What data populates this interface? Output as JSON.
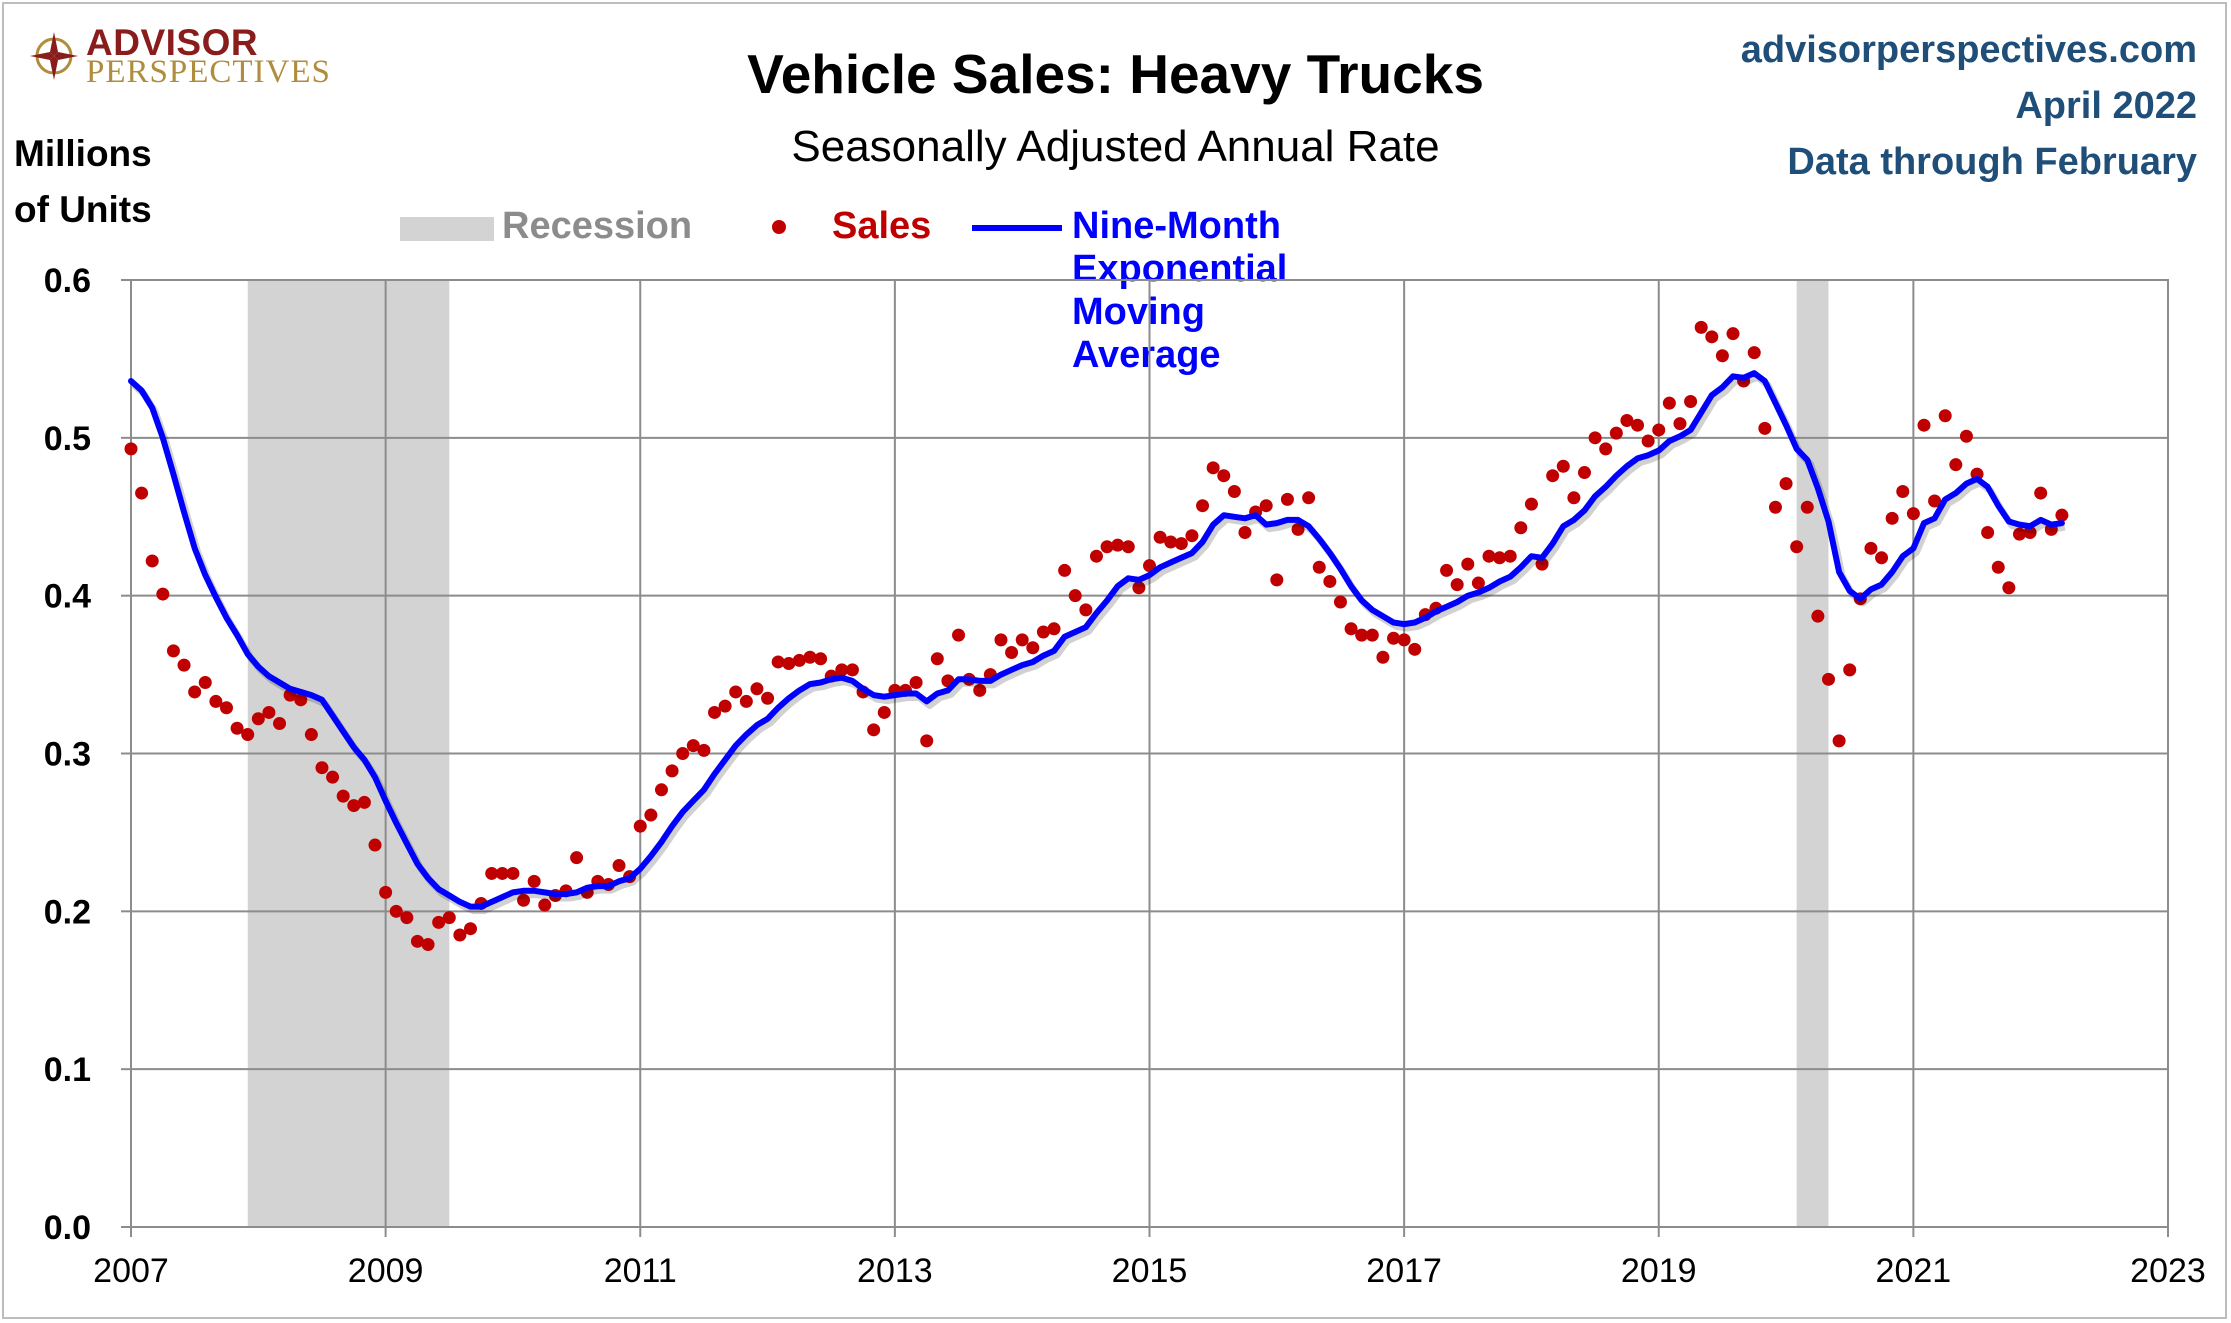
{
  "header": {
    "logo_brand": "ADVISOR",
    "logo_sub": "PERSPECTIVES",
    "source_url": "advisorperspectives.com",
    "date": "April 2022",
    "data_through": "Data through February"
  },
  "colors": {
    "sales": "#c00000",
    "ema": "#0000ff",
    "recession": "#d3d3d3",
    "source_text": "#1f4e79",
    "logo_red": "#8a1c1c",
    "logo_gold": "#b08d3c"
  },
  "chart_data": {
    "type": "scatter",
    "title": "Vehicle Sales: Heavy Trucks",
    "subtitle": "Seasonally Adjusted Annual Rate",
    "ylabel_line1": "Millions",
    "ylabel_line2": "of Units",
    "ylim": [
      0,
      0.6
    ],
    "xlim": [
      2007,
      2023
    ],
    "yticks": [
      "0.0",
      "0.1",
      "0.2",
      "0.3",
      "0.4",
      "0.5",
      "0.6"
    ],
    "xticks": [
      "2007",
      "2009",
      "2011",
      "2013",
      "2015",
      "2017",
      "2019",
      "2021",
      "2023"
    ],
    "grid": true,
    "legend_placement": "top",
    "legend": {
      "recession": "Recession",
      "sales": "Sales",
      "ema": "Nine-Month Exponential Moving Average"
    },
    "recessions": [
      {
        "start": 2007.917,
        "end": 2009.5
      },
      {
        "start": 2020.083,
        "end": 2020.333
      }
    ],
    "series": [
      {
        "name": "Sales",
        "start_year": 2007,
        "start_month": 1,
        "values": [
          0.493,
          0.465,
          0.422,
          0.401,
          0.365,
          0.356,
          0.339,
          0.345,
          0.333,
          0.329,
          0.316,
          0.312,
          0.322,
          0.326,
          0.319,
          0.337,
          0.334,
          0.312,
          0.291,
          0.285,
          0.273,
          0.267,
          0.269,
          0.242,
          0.212,
          0.2,
          0.196,
          0.181,
          0.179,
          0.193,
          0.196,
          0.185,
          0.189,
          0.205,
          0.224,
          0.224,
          0.224,
          0.207,
          0.219,
          0.204,
          0.21,
          0.213,
          0.234,
          0.212,
          0.219,
          0.217,
          0.229,
          0.222,
          0.254,
          0.261,
          0.277,
          0.289,
          0.3,
          0.305,
          0.302,
          0.326,
          0.33,
          0.339,
          0.333,
          0.341,
          0.335,
          0.358,
          0.357,
          0.359,
          0.361,
          0.36,
          0.349,
          0.353,
          0.353,
          0.339,
          0.315,
          0.326,
          0.34,
          0.34,
          0.345,
          0.308,
          0.36,
          0.346,
          0.375,
          0.347,
          0.34,
          0.35,
          0.372,
          0.364,
          0.372,
          0.367,
          0.377,
          0.379,
          0.416,
          0.4,
          0.391,
          0.425,
          0.431,
          0.432,
          0.431,
          0.405,
          0.419,
          0.437,
          0.434,
          0.433,
          0.438,
          0.457,
          0.481,
          0.476,
          0.466,
          0.44,
          0.453,
          0.457,
          0.41,
          0.461,
          0.442,
          0.462,
          0.418,
          0.409,
          0.396,
          0.379,
          0.375,
          0.375,
          0.361,
          0.373,
          0.372,
          0.366,
          0.388,
          0.392,
          0.416,
          0.407,
          0.42,
          0.408,
          0.425,
          0.424,
          0.425,
          0.443,
          0.458,
          0.42,
          0.476,
          0.482,
          0.462,
          0.478,
          0.5,
          0.493,
          0.503,
          0.511,
          0.508,
          0.498,
          0.505,
          0.522,
          0.509,
          0.523,
          0.57,
          0.564,
          0.552,
          0.566,
          0.536,
          0.554,
          0.506,
          0.456,
          0.471,
          0.431,
          0.456,
          0.387,
          0.347,
          0.308,
          0.353,
          0.398,
          0.43,
          0.424,
          0.449,
          0.466,
          0.452,
          0.508,
          0.46,
          0.514,
          0.483,
          0.501,
          0.477,
          0.44,
          0.418,
          0.405,
          0.439,
          0.44,
          0.465,
          0.442,
          0.451
        ]
      },
      {
        "name": "Nine-Month Exponential Moving Average",
        "start_year": 2007,
        "start_month": 1,
        "values": [
          0.536,
          0.53,
          0.519,
          0.5,
          0.477,
          0.453,
          0.43,
          0.413,
          0.399,
          0.386,
          0.375,
          0.363,
          0.355,
          0.349,
          0.345,
          0.341,
          0.339,
          0.337,
          0.334,
          0.324,
          0.314,
          0.304,
          0.296,
          0.285,
          0.27,
          0.256,
          0.243,
          0.23,
          0.221,
          0.214,
          0.21,
          0.206,
          0.203,
          0.203,
          0.206,
          0.209,
          0.212,
          0.213,
          0.213,
          0.212,
          0.211,
          0.211,
          0.212,
          0.215,
          0.216,
          0.216,
          0.219,
          0.221,
          0.227,
          0.235,
          0.244,
          0.254,
          0.263,
          0.27,
          0.277,
          0.287,
          0.296,
          0.305,
          0.312,
          0.318,
          0.322,
          0.329,
          0.335,
          0.34,
          0.344,
          0.345,
          0.347,
          0.348,
          0.346,
          0.341,
          0.337,
          0.336,
          0.337,
          0.338,
          0.338,
          0.333,
          0.338,
          0.34,
          0.347,
          0.347,
          0.346,
          0.346,
          0.35,
          0.353,
          0.356,
          0.358,
          0.362,
          0.365,
          0.374,
          0.377,
          0.38,
          0.389,
          0.397,
          0.406,
          0.411,
          0.41,
          0.413,
          0.418,
          0.421,
          0.424,
          0.427,
          0.434,
          0.445,
          0.451,
          0.45,
          0.449,
          0.451,
          0.445,
          0.446,
          0.448,
          0.448,
          0.444,
          0.436,
          0.427,
          0.417,
          0.406,
          0.397,
          0.391,
          0.387,
          0.383,
          0.382,
          0.383,
          0.386,
          0.39,
          0.393,
          0.396,
          0.4,
          0.402,
          0.405,
          0.409,
          0.412,
          0.418,
          0.425,
          0.424,
          0.433,
          0.444,
          0.448,
          0.454,
          0.463,
          0.469,
          0.476,
          0.482,
          0.487,
          0.489,
          0.492,
          0.498,
          0.501,
          0.505,
          0.516,
          0.527,
          0.532,
          0.539,
          0.538,
          0.541,
          0.536,
          0.522,
          0.508,
          0.493,
          0.486,
          0.468,
          0.447,
          0.415,
          0.403,
          0.398,
          0.404,
          0.407,
          0.415,
          0.425,
          0.43,
          0.446,
          0.449,
          0.461,
          0.465,
          0.471,
          0.474,
          0.469,
          0.457,
          0.447,
          0.445,
          0.444,
          0.448,
          0.445,
          0.446
        ]
      }
    ]
  }
}
